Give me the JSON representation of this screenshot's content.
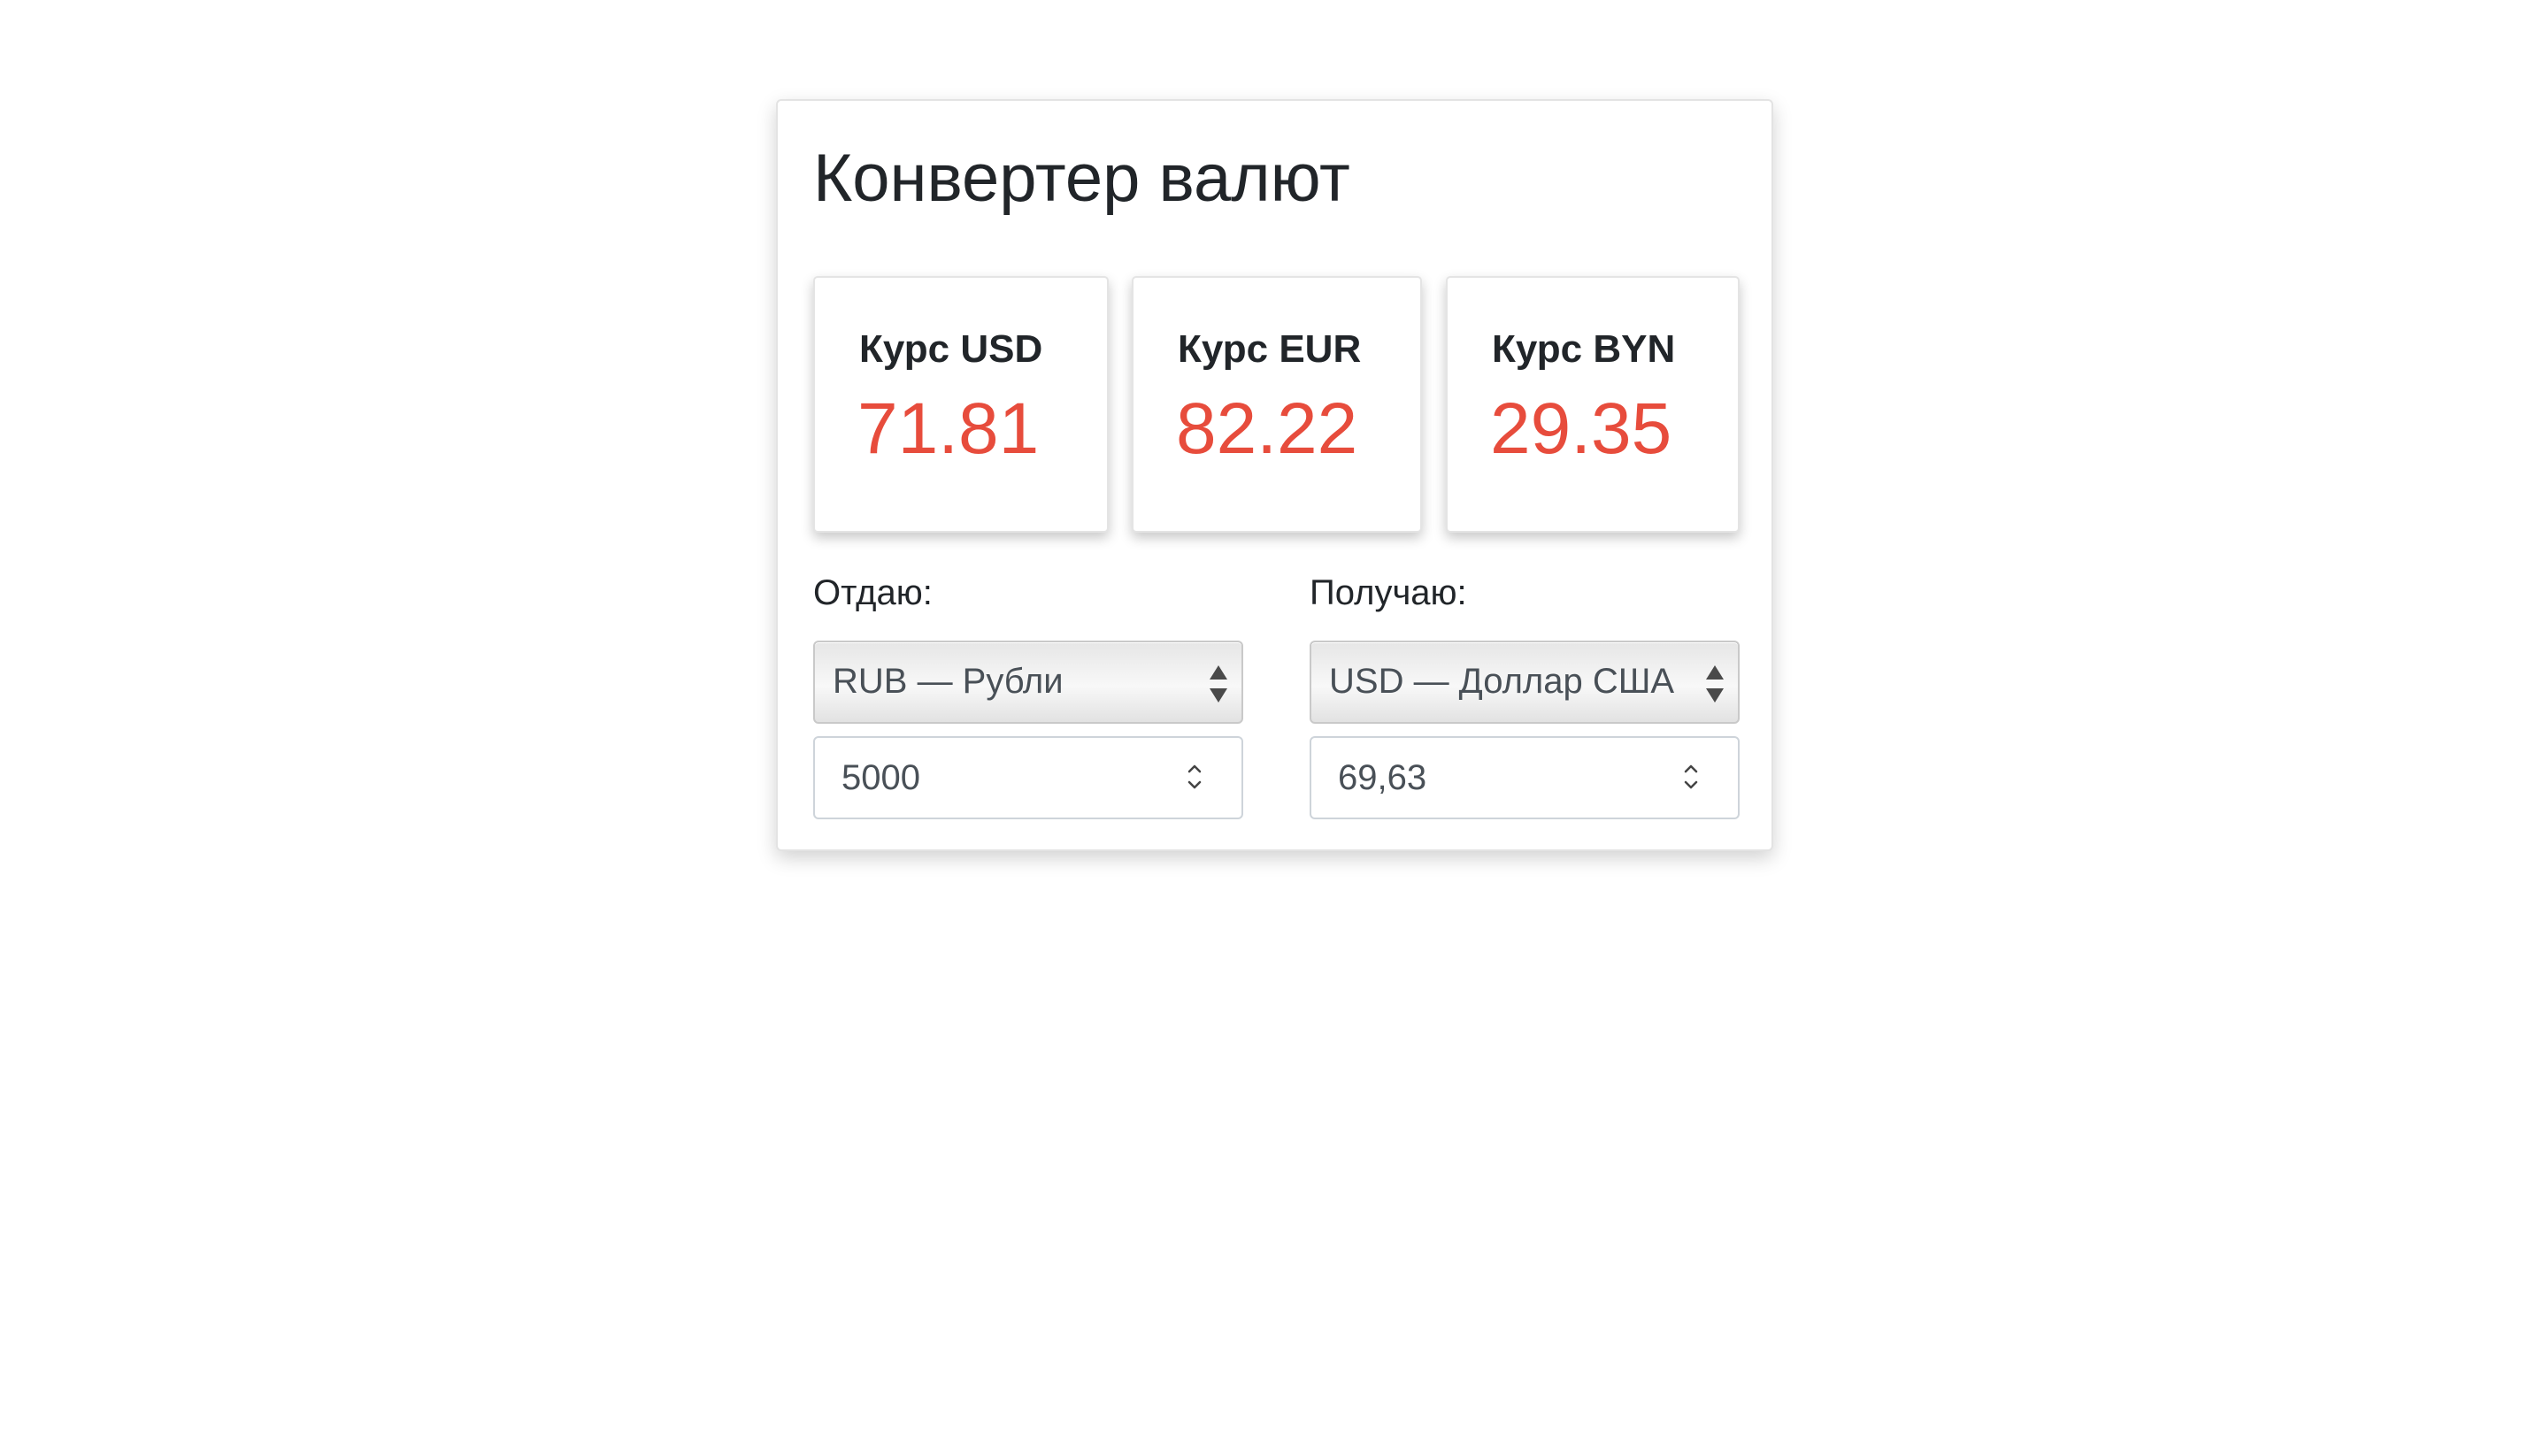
{
  "title": "Конвертер валют",
  "rates": [
    {
      "label": "Курс USD",
      "value": "71.81"
    },
    {
      "label": "Курс EUR",
      "value": "82.22"
    },
    {
      "label": "Курс BYN",
      "value": "29.35"
    }
  ],
  "from": {
    "label": "Отдаю:",
    "currency": "RUB — Рубли",
    "amount": "5000"
  },
  "to": {
    "label": "Получаю:",
    "currency": "USD — Доллар США",
    "amount": "69,63"
  },
  "colors": {
    "rate_value": "#e74c3c",
    "text": "#212529",
    "input_text": "#495057"
  },
  "icons": {
    "select": "select-updown-arrows-icon",
    "number": "number-spinner-icon"
  }
}
